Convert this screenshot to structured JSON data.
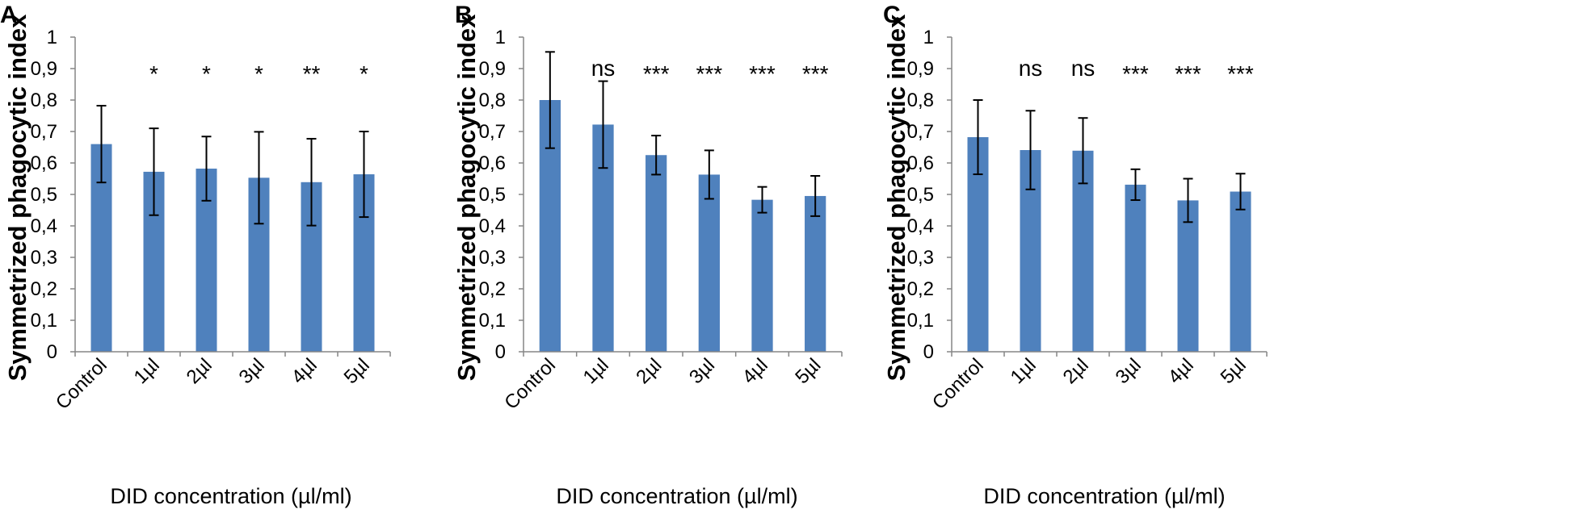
{
  "colors": {
    "bar": "#4F81BD",
    "axis": "#868686",
    "text": "#000000"
  },
  "chart_data": [
    {
      "panel": "A",
      "type": "bar",
      "categories": [
        "Control",
        "1µl",
        "2µl",
        "3µl",
        "4µl",
        "5µl"
      ],
      "values": [
        0.66,
        0.572,
        0.582,
        0.553,
        0.539,
        0.564
      ],
      "error": [
        0.122,
        0.138,
        0.102,
        0.146,
        0.138,
        0.136
      ],
      "significance": [
        "",
        "*",
        "*",
        "*",
        "**",
        "*"
      ],
      "xlabel": "DID concentration (µl/ml)",
      "ylabel": "Symmetrized phagocytic index",
      "ylim": [
        0,
        1
      ],
      "yticks": [
        "0",
        "0,1",
        "0,2",
        "0,3",
        "0,4",
        "0,5",
        "0,6",
        "0,7",
        "0,8",
        "0,9",
        "1"
      ],
      "grid": false
    },
    {
      "panel": "B",
      "type": "bar",
      "categories": [
        "Control",
        "1µl",
        "2µl",
        "3µl",
        "4µl",
        "5µl"
      ],
      "values": [
        0.8,
        0.722,
        0.625,
        0.563,
        0.483,
        0.495
      ],
      "error": [
        0.153,
        0.138,
        0.062,
        0.077,
        0.041,
        0.064
      ],
      "significance": [
        "",
        "ns",
        "***",
        "***",
        "***",
        "***"
      ],
      "xlabel": "DID concentration (µl/ml)",
      "ylabel": "Symmetrized phagocytic index",
      "ylim": [
        0,
        1
      ],
      "yticks": [
        "0",
        "0,1",
        "0,2",
        "0,3",
        "0,4",
        "0,5",
        "0,6",
        "0,7",
        "0,8",
        "0,9",
        "1"
      ],
      "grid": false
    },
    {
      "panel": "C",
      "type": "bar",
      "categories": [
        "Control",
        "1µl",
        "2µl",
        "3µl",
        "4µl",
        "5µl"
      ],
      "values": [
        0.682,
        0.641,
        0.639,
        0.531,
        0.481,
        0.509
      ],
      "error": [
        0.118,
        0.125,
        0.104,
        0.049,
        0.069,
        0.057
      ],
      "significance": [
        "",
        "ns",
        "ns",
        "***",
        "***",
        "***"
      ],
      "xlabel": "DID concentration (µl/ml)",
      "ylabel": "Symmetrized phagocytic index",
      "ylim": [
        0,
        1
      ],
      "yticks": [
        "0",
        "0,1",
        "0,2",
        "0,3",
        "0,4",
        "0,5",
        "0,6",
        "0,7",
        "0,8",
        "0,9",
        "1"
      ],
      "grid": false
    }
  ]
}
